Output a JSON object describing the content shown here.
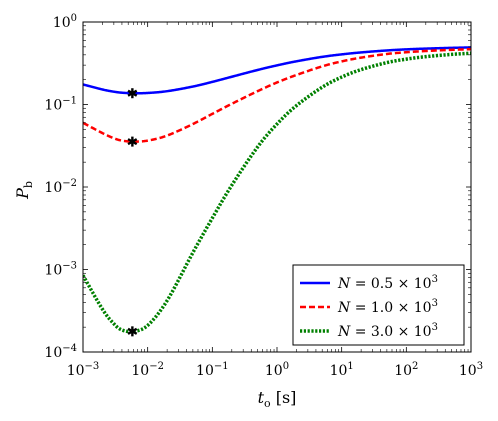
{
  "chart_data": {
    "type": "line",
    "x_scale": "log",
    "y_scale": "log",
    "xlim": [
      0.001,
      1000
    ],
    "ylim": [
      0.0001,
      1
    ],
    "x_ticks": [
      0.001,
      0.01,
      0.1,
      1,
      10,
      100,
      1000
    ],
    "y_ticks": [
      0.0001,
      0.001,
      0.01,
      0.1,
      1
    ],
    "x_tick_labels": [
      {
        "base": "10",
        "exp": "−3"
      },
      {
        "base": "10",
        "exp": "−2"
      },
      {
        "base": "10",
        "exp": "−1"
      },
      {
        "base": "10",
        "exp": "0"
      },
      {
        "base": "10",
        "exp": "1"
      },
      {
        "base": "10",
        "exp": "2"
      },
      {
        "base": "10",
        "exp": "3"
      }
    ],
    "y_tick_labels": [
      {
        "base": "10",
        "exp": "−4"
      },
      {
        "base": "10",
        "exp": "−3"
      },
      {
        "base": "10",
        "exp": "−2"
      },
      {
        "base": "10",
        "exp": "−1"
      },
      {
        "base": "10",
        "exp": "0"
      }
    ],
    "xlabel": {
      "main": "t",
      "sub": "o",
      "unit": " [s]"
    },
    "ylabel": {
      "main": "P",
      "sub": "b"
    },
    "grid": false,
    "legend_position": "bottom-right",
    "series": [
      {
        "name": "N = 0.5 × 10^3",
        "legend": {
          "prefix": "N = 0.5 × 10",
          "exp": "3"
        },
        "color": "#0000ff",
        "dash": "solid",
        "x": [
          0.001,
          0.002,
          0.003,
          0.004,
          0.006,
          0.01,
          0.02,
          0.05,
          0.1,
          0.2,
          0.5,
          1,
          2,
          5,
          10,
          20,
          50,
          100,
          200,
          500,
          1000
        ],
        "y": [
          0.175,
          0.152,
          0.143,
          0.139,
          0.137,
          0.138,
          0.145,
          0.165,
          0.188,
          0.217,
          0.262,
          0.298,
          0.334,
          0.378,
          0.405,
          0.428,
          0.452,
          0.466,
          0.476,
          0.486,
          0.492
        ],
        "marker": {
          "x": 0.0058,
          "y": 0.137
        }
      },
      {
        "name": "N = 1.0 × 10^3",
        "legend": {
          "prefix": "N = 1.0 × 10",
          "exp": "3"
        },
        "color": "#ff0000",
        "dash": "dashed",
        "x": [
          0.001,
          0.002,
          0.003,
          0.004,
          0.006,
          0.01,
          0.02,
          0.05,
          0.1,
          0.2,
          0.5,
          1,
          2,
          5,
          10,
          20,
          50,
          100,
          200,
          500,
          1000
        ],
        "y": [
          0.06,
          0.045,
          0.039,
          0.0365,
          0.0355,
          0.0365,
          0.042,
          0.058,
          0.077,
          0.102,
          0.145,
          0.185,
          0.228,
          0.29,
          0.333,
          0.37,
          0.41,
          0.43,
          0.445,
          0.46,
          0.468
        ],
        "marker": {
          "x": 0.0058,
          "y": 0.0355
        }
      },
      {
        "name": "N = 3.0 × 10^3",
        "legend": {
          "prefix": "N = 3.0 × 10",
          "exp": "3"
        },
        "color": "#008000",
        "dash": "dotted",
        "x": [
          0.001,
          0.002,
          0.003,
          0.004,
          0.006,
          0.01,
          0.02,
          0.05,
          0.1,
          0.2,
          0.5,
          1,
          2,
          5,
          10,
          20,
          50,
          100,
          200,
          500,
          1000
        ],
        "y": [
          0.00085,
          0.00033,
          0.00022,
          0.000185,
          0.000178,
          0.00021,
          0.00042,
          0.0016,
          0.0042,
          0.0105,
          0.0305,
          0.058,
          0.097,
          0.162,
          0.215,
          0.265,
          0.322,
          0.355,
          0.38,
          0.405,
          0.418
        ],
        "marker": {
          "x": 0.0058,
          "y": 0.000178
        }
      }
    ]
  }
}
